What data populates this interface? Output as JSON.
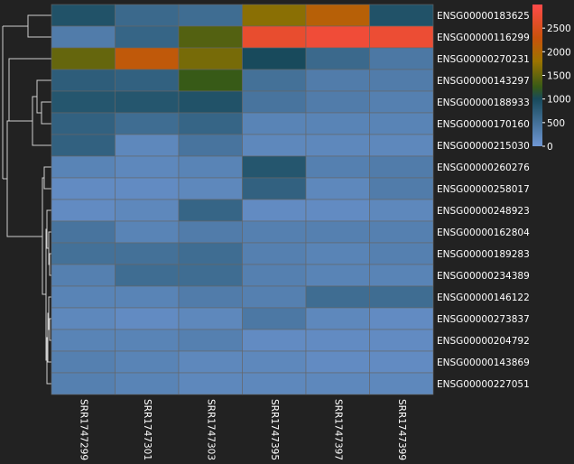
{
  "chart_data": {
    "type": "heatmap",
    "title": "",
    "columns": [
      "SRR1747299",
      "SRR1747301",
      "SRR1747303",
      "SRR1747395",
      "SRR1747397",
      "SRR1747399"
    ],
    "rows": [
      "ENSG00000183625",
      "ENSG00000116299",
      "ENSG00000270231",
      "ENSG00000143297",
      "ENSG00000188933",
      "ENSG00000170160",
      "ENSG00000215030",
      "ENSG00000260276",
      "ENSG00000258017",
      "ENSG00000248923",
      "ENSG00000162804",
      "ENSG00000189283",
      "ENSG00000234389",
      "ENSG00000146122",
      "ENSG00000273837",
      "ENSG00000204792",
      "ENSG00000143869",
      "ENSG00000227051"
    ],
    "values": [
      [
        900,
        600,
        550,
        1700,
        2100,
        900
      ],
      [
        350,
        650,
        1400,
        2700,
        2800,
        2750
      ],
      [
        1500,
        2200,
        1600,
        1000,
        600,
        400
      ],
      [
        750,
        700,
        1250,
        500,
        350,
        350
      ],
      [
        850,
        850,
        900,
        450,
        350,
        300
      ],
      [
        700,
        550,
        650,
        250,
        250,
        250
      ],
      [
        700,
        200,
        450,
        200,
        200,
        200
      ],
      [
        250,
        200,
        250,
        850,
        300,
        350
      ],
      [
        150,
        150,
        200,
        700,
        200,
        350
      ],
      [
        150,
        200,
        650,
        150,
        150,
        200
      ],
      [
        450,
        250,
        350,
        300,
        300,
        300
      ],
      [
        500,
        500,
        550,
        300,
        250,
        300
      ],
      [
        300,
        550,
        550,
        300,
        250,
        250
      ],
      [
        250,
        250,
        350,
        300,
        550,
        550
      ],
      [
        200,
        150,
        200,
        400,
        200,
        150
      ],
      [
        250,
        250,
        300,
        150,
        150,
        150
      ],
      [
        300,
        250,
        200,
        200,
        150,
        150
      ],
      [
        300,
        250,
        200,
        200,
        200,
        200
      ]
    ],
    "colorbar": {
      "min": 0,
      "max": 3000,
      "ticks": [
        0,
        500,
        1000,
        1500,
        2000,
        2500
      ],
      "tick_labels": [
        "0",
        "500",
        "1000",
        "1500",
        "2000",
        "2500"
      ]
    },
    "colorscale": [
      [
        0,
        "#6f97d4"
      ],
      [
        1000,
        "#184a5c"
      ],
      [
        1250,
        "#375a17"
      ],
      [
        1800,
        "#9c7400"
      ],
      [
        2300,
        "#c9520c"
      ],
      [
        3000,
        "#ff4a4a"
      ]
    ],
    "row_dendrogram": "left",
    "column_dendrogram": "none",
    "grid_color": "#666666",
    "background": "#222222"
  }
}
